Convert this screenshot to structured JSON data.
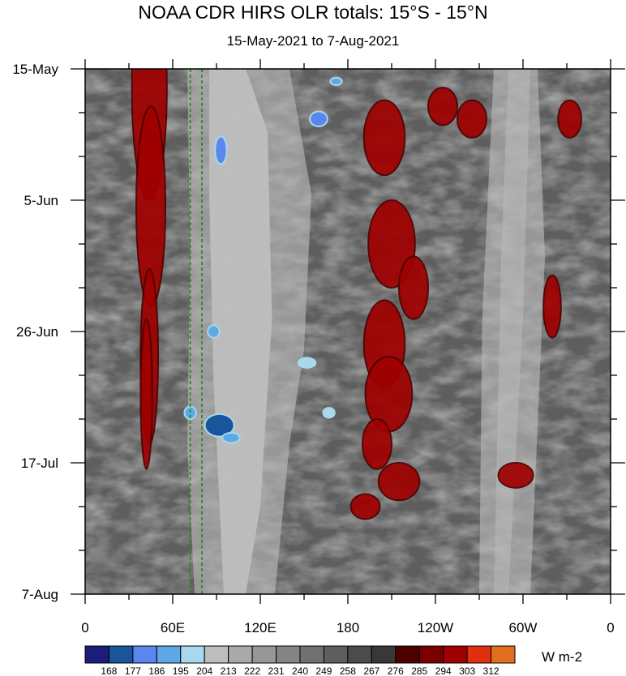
{
  "chart_data": {
    "type": "heatmap",
    "title": "NOAA CDR HIRS OLR totals: 15°S - 15°N",
    "subtitle": "15-May-2021 to 7-Aug-2021",
    "units": "W m-2",
    "xaxis": {
      "range_deg_east": [
        0,
        360
      ],
      "ticks": [
        {
          "lon": 0,
          "label": "0"
        },
        {
          "lon": 60,
          "label": "60E"
        },
        {
          "lon": 120,
          "label": "120E"
        },
        {
          "lon": 180,
          "label": "180"
        },
        {
          "lon": 240,
          "label": "120W"
        },
        {
          "lon": 300,
          "label": "60W"
        },
        {
          "lon": 360,
          "label": "0"
        }
      ]
    },
    "yaxis": {
      "range_days": [
        0,
        84
      ],
      "ticks": [
        {
          "day": 0,
          "label": "15-May"
        },
        {
          "day": 21,
          "label": "5-Jun"
        },
        {
          "day": 42,
          "label": "26-Jun"
        },
        {
          "day": 63,
          "label": "17-Jul"
        },
        {
          "day": 84,
          "label": "7-Aug"
        }
      ]
    },
    "colorbar": {
      "levels": [
        168,
        177,
        186,
        195,
        204,
        213,
        222,
        231,
        240,
        249,
        258,
        267,
        276,
        285,
        294,
        303,
        312
      ],
      "colors": [
        "#1c1c7c",
        "#18559a",
        "#5a86f0",
        "#5ea8e8",
        "#a8d8ea",
        "#bdbdbd",
        "#aaaaaa",
        "#979797",
        "#848484",
        "#717171",
        "#5e5e5e",
        "#4b4b4b",
        "#383838",
        "#4d0000",
        "#780000",
        "#a00000",
        "#e03010",
        "#e07020"
      ]
    },
    "reference_lines": {
      "lons": [
        72,
        80
      ],
      "color": "#1a8a1a",
      "style": "dashed"
    }
  }
}
